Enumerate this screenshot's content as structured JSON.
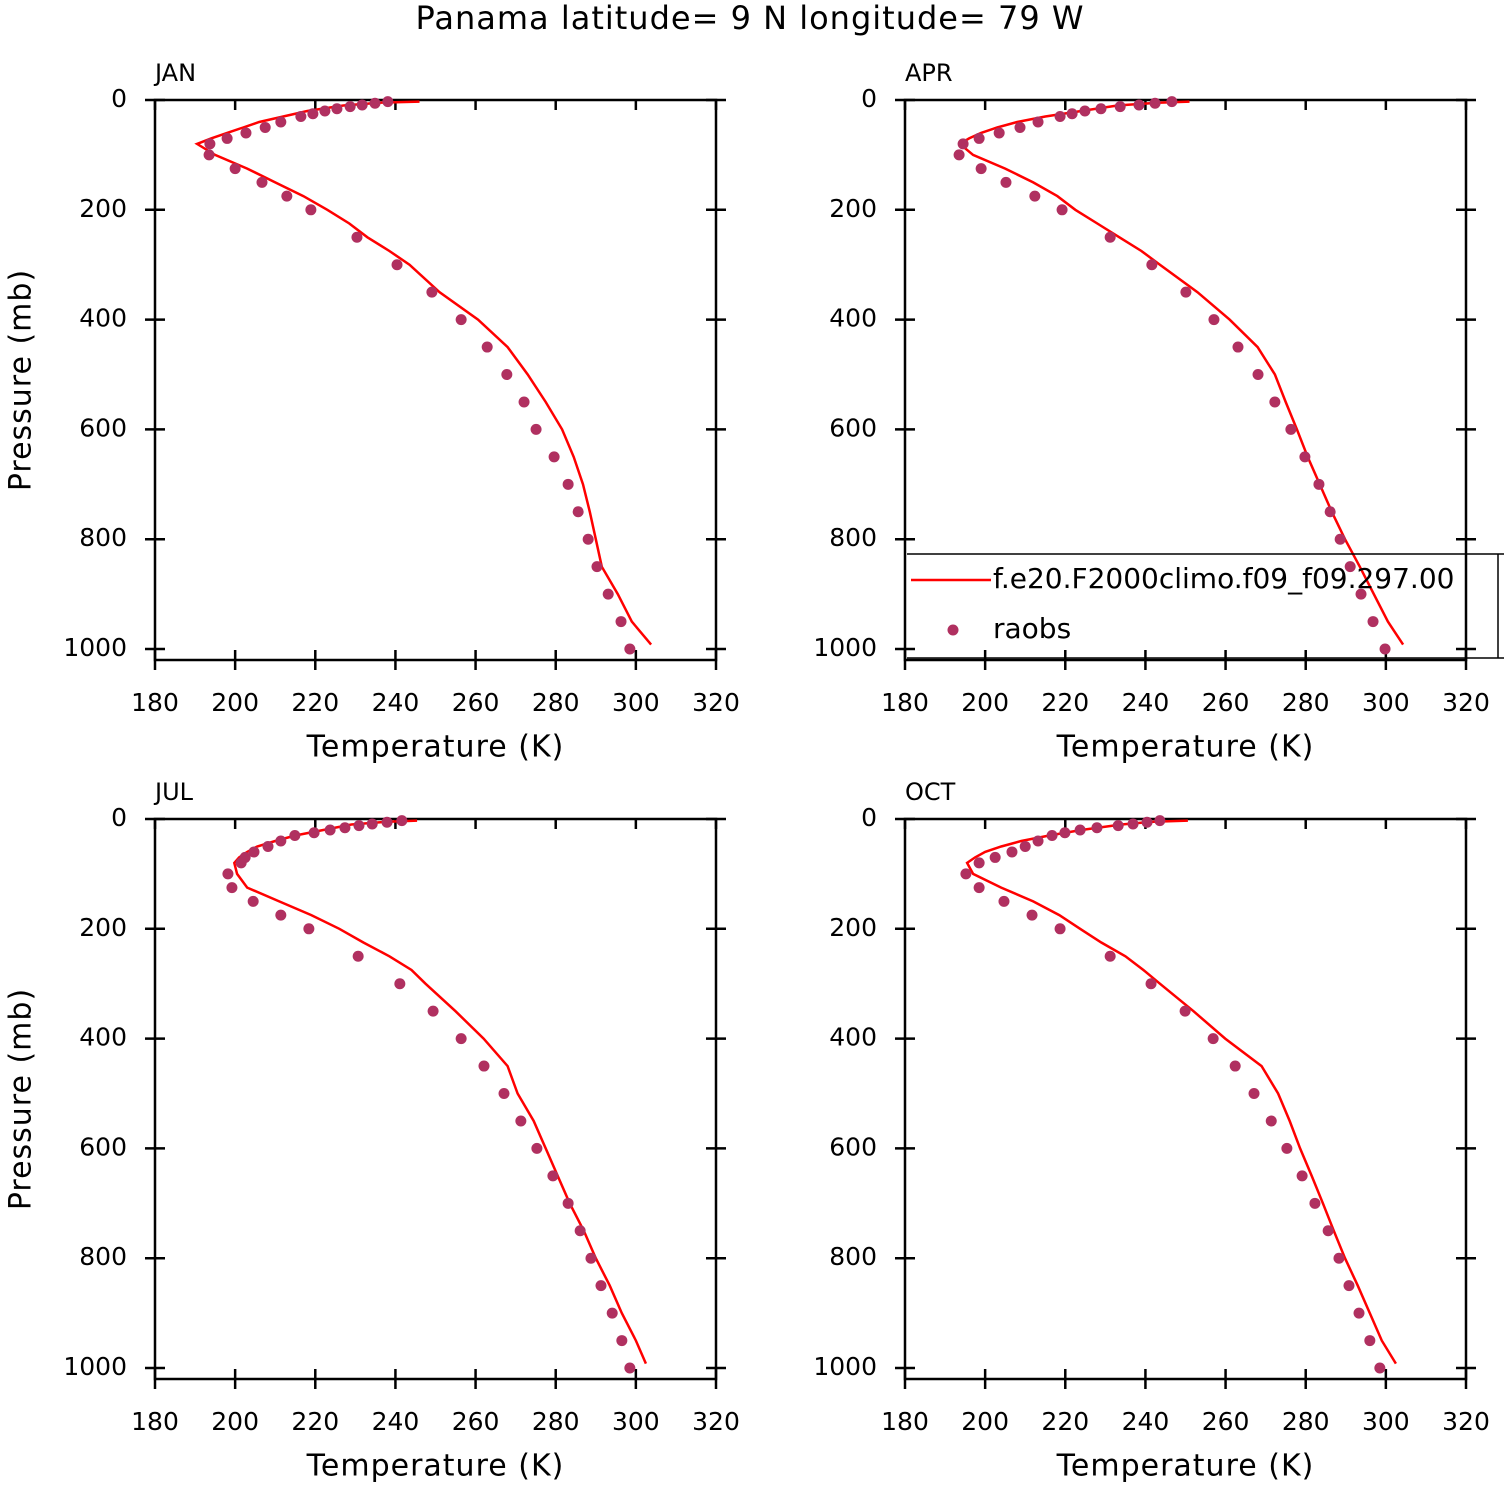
{
  "title": "Panama  latitude= 9 N longitude= 79 W",
  "chart_data": [
    {
      "type": "line",
      "title": "JAN",
      "xlabel": "Temperature (K)",
      "ylabel": "Pressure (mb)",
      "xlim": [
        180,
        320
      ],
      "xticks": [
        180,
        200,
        220,
        240,
        260,
        280,
        300,
        320
      ],
      "ylim": [
        1020,
        0
      ],
      "yticks": [
        0,
        200,
        400,
        600,
        800,
        1000
      ],
      "series": [
        {
          "style": "line",
          "color": "#ff0000",
          "x": [
            246,
            236,
            227,
            218,
            212,
            206,
            202,
            198,
            194,
            190.5,
            195,
            203,
            210,
            217,
            223,
            228.5,
            233,
            238.5,
            243.5,
            251,
            260.6,
            268,
            273,
            277.5,
            281.6,
            284.5,
            286.8,
            288.5,
            290,
            291.5,
            295.5,
            299,
            303.8
          ],
          "y": [
            3,
            5,
            10,
            20,
            30,
            40,
            50,
            60,
            70,
            80,
            100,
            125,
            150,
            175,
            200,
            225,
            250,
            275,
            300,
            350,
            400,
            450,
            500,
            550,
            600,
            650,
            700,
            750,
            800,
            850,
            900,
            950,
            992
          ]
        },
        {
          "style": "marker",
          "color": "#b03060",
          "x": [
            238.1,
            234.9,
            231.7,
            228.7,
            225.4,
            222.4,
            219.4,
            216.4,
            211.4,
            207.5,
            202.7,
            198,
            193.7,
            193.5,
            200,
            206.7,
            212.9,
            218.9,
            230.4,
            240.4,
            249.1,
            256.4,
            262.9,
            267.8,
            272.1,
            275.1,
            279.6,
            283.1,
            285.6,
            288.1,
            290.3,
            293.1,
            296.3,
            298.5
          ],
          "y": [
            3,
            6,
            9,
            12,
            16,
            20,
            25,
            30,
            40,
            50,
            60,
            70,
            80,
            100,
            125,
            150,
            175,
            200,
            250,
            300,
            350,
            400,
            450,
            500,
            550,
            600,
            650,
            700,
            750,
            800,
            850,
            900,
            950,
            1000
          ]
        }
      ]
    },
    {
      "type": "line",
      "title": "APR",
      "xlabel": "Temperature (K)",
      "legend": "lower right",
      "xlim": [
        180,
        320
      ],
      "xticks": [
        180,
        200,
        220,
        240,
        260,
        280,
        300,
        320
      ],
      "ylim": [
        1020,
        0
      ],
      "yticks": [
        0,
        200,
        400,
        600,
        800,
        1000
      ],
      "series": [
        {
          "name": "f.e20.F2000climo.f09_f09.297.00",
          "style": "line",
          "color": "#ff0000",
          "x": [
            251,
            243,
            233,
            224,
            215,
            208,
            203,
            199,
            196,
            193.7,
            197,
            205,
            212,
            218,
            222.5,
            228,
            233.5,
            239,
            243.6,
            253,
            261,
            268,
            272.3,
            275,
            277.8,
            280.5,
            283.5,
            286.5,
            289.8,
            293.5,
            297,
            300.5,
            304.3
          ],
          "y": [
            3,
            5,
            10,
            20,
            30,
            40,
            50,
            60,
            70,
            80,
            100,
            125,
            150,
            175,
            200,
            225,
            250,
            275,
            300,
            350,
            400,
            450,
            500,
            550,
            600,
            650,
            700,
            750,
            800,
            850,
            900,
            950,
            992
          ]
        },
        {
          "name": "raobs",
          "style": "marker",
          "color": "#b03060",
          "x": [
            246.6,
            242.4,
            238.4,
            233.7,
            228.9,
            224.9,
            221.7,
            218.7,
            213.2,
            208.7,
            203.5,
            198.5,
            194.5,
            193.5,
            199,
            205.2,
            212.4,
            219.2,
            231.2,
            241.6,
            250.1,
            257.1,
            263.1,
            268.1,
            272.3,
            276.3,
            279.8,
            283.3,
            286.1,
            288.6,
            291.1,
            293.8,
            296.8,
            299.8
          ],
          "y": [
            3,
            6,
            9,
            12,
            16,
            20,
            25,
            30,
            40,
            50,
            60,
            70,
            80,
            100,
            125,
            150,
            175,
            200,
            250,
            300,
            350,
            400,
            450,
            500,
            550,
            600,
            650,
            700,
            750,
            800,
            850,
            900,
            950,
            1000
          ]
        }
      ]
    },
    {
      "type": "line",
      "title": "JUL",
      "xlabel": "Temperature (K)",
      "ylabel": "Pressure (mb)",
      "xlim": [
        180,
        320
      ],
      "xticks": [
        180,
        200,
        220,
        240,
        260,
        280,
        300,
        320
      ],
      "ylim": [
        1020,
        0
      ],
      "yticks": [
        0,
        200,
        400,
        600,
        800,
        1000
      ],
      "series": [
        {
          "style": "line",
          "color": "#ff0000",
          "x": [
            245.4,
            238,
            229,
            222,
            215,
            210,
            205.5,
            203,
            201,
            199.8,
            200.5,
            203,
            211,
            219,
            226,
            232,
            238.5,
            244,
            247.5,
            255,
            262,
            268,
            270.5,
            274.5,
            277.5,
            280.5,
            283.5,
            287,
            290,
            293.5,
            296.5,
            300,
            302.5
          ],
          "y": [
            3,
            5,
            10,
            20,
            30,
            40,
            50,
            60,
            70,
            80,
            100,
            125,
            150,
            175,
            200,
            225,
            250,
            275,
            300,
            350,
            400,
            450,
            500,
            550,
            600,
            650,
            700,
            750,
            800,
            850,
            900,
            950,
            992
          ]
        },
        {
          "style": "marker",
          "color": "#b03060",
          "x": [
            241.6,
            237.9,
            234.2,
            230.9,
            227.4,
            223.7,
            219.7,
            214.9,
            211.4,
            208.2,
            204.7,
            202.5,
            201.5,
            198.2,
            199.2,
            204.5,
            211.4,
            218.4,
            230.7,
            241.1,
            249.4,
            256.4,
            262.1,
            267.1,
            271.3,
            275.3,
            279.3,
            283.1,
            286.1,
            288.8,
            291.3,
            294.1,
            296.5,
            298.5
          ],
          "y": [
            3,
            6,
            9,
            12,
            16,
            20,
            25,
            30,
            40,
            50,
            60,
            70,
            80,
            100,
            125,
            150,
            175,
            200,
            250,
            300,
            350,
            400,
            450,
            500,
            550,
            600,
            650,
            700,
            750,
            800,
            850,
            900,
            950,
            1000
          ]
        }
      ]
    },
    {
      "type": "line",
      "title": "OCT",
      "xlabel": "Temperature (K)",
      "xlim": [
        180,
        320
      ],
      "xticks": [
        180,
        200,
        220,
        240,
        260,
        280,
        300,
        320
      ],
      "ylim": [
        1020,
        0
      ],
      "yticks": [
        0,
        200,
        400,
        600,
        800,
        1000
      ],
      "series": [
        {
          "style": "line",
          "color": "#ff0000",
          "x": [
            250.6,
            242,
            234,
            224,
            216,
            209,
            204,
            200,
            197.5,
            195.5,
            197,
            204,
            212,
            218.5,
            223.7,
            229,
            235,
            239.5,
            243.6,
            252,
            259.9,
            269,
            273.1,
            276,
            278.6,
            281.5,
            284.3,
            287,
            289.8,
            293,
            296,
            299,
            302.5
          ],
          "y": [
            3,
            5,
            10,
            20,
            30,
            40,
            50,
            60,
            70,
            80,
            100,
            125,
            150,
            175,
            200,
            225,
            250,
            275,
            300,
            350,
            400,
            450,
            500,
            550,
            600,
            650,
            700,
            750,
            800,
            850,
            900,
            950,
            992
          ]
        },
        {
          "style": "marker",
          "color": "#b03060",
          "x": [
            243.6,
            240.4,
            236.9,
            233.2,
            227.9,
            223.7,
            219.9,
            216.7,
            213.2,
            210,
            206.7,
            202.5,
            198.5,
            195.2,
            198.5,
            204.7,
            211.7,
            218.7,
            231.2,
            241.4,
            249.9,
            256.9,
            262.4,
            267.1,
            271.4,
            275.3,
            279.1,
            282.3,
            285.6,
            288.3,
            290.8,
            293.3,
            296,
            298.5
          ],
          "y": [
            3,
            6,
            9,
            12,
            16,
            20,
            25,
            30,
            40,
            50,
            60,
            70,
            80,
            100,
            125,
            150,
            175,
            200,
            250,
            300,
            350,
            400,
            450,
            500,
            550,
            600,
            650,
            700,
            750,
            800,
            850,
            900,
            950,
            1000
          ]
        }
      ]
    }
  ]
}
